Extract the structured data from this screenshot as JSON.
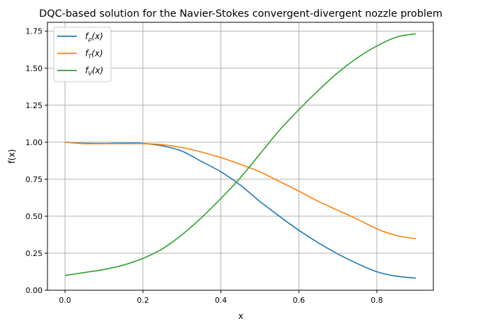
{
  "chart_data": {
    "type": "line",
    "title": "DQC-based solution for the Navier-Stokes convergent-divergent nozzle problem",
    "xlabel": "x",
    "ylabel": "f(x)",
    "xlim": [
      -0.045,
      0.945
    ],
    "ylim": [
      0,
      1.81
    ],
    "xticks": [
      0.0,
      0.2,
      0.4,
      0.6,
      0.8
    ],
    "xtick_labels": [
      "0.0",
      "0.2",
      "0.4",
      "0.6",
      "0.8"
    ],
    "yticks": [
      0,
      0.25,
      0.5,
      0.75,
      1.0,
      1.25,
      1.5,
      1.75
    ],
    "ytick_labels": [
      "0.00",
      "0.25",
      "0.50",
      "0.75",
      "1.00",
      "1.25",
      "1.50",
      "1.75"
    ],
    "grid": true,
    "legend_position": "top-left",
    "x": [
      0,
      0.05,
      0.1,
      0.15,
      0.2,
      0.25,
      0.3,
      0.35,
      0.4,
      0.45,
      0.5,
      0.55,
      0.6,
      0.65,
      0.7,
      0.75,
      0.8,
      0.85,
      0.9
    ],
    "series": [
      {
        "name": "f_ρ(x)",
        "label_main": "f",
        "label_sub": "ρ",
        "label_tail": "(x)",
        "color": "#1f77b4",
        "values": [
          1.0,
          0.993,
          0.992,
          0.994,
          0.992,
          0.975,
          0.94,
          0.87,
          0.8,
          0.71,
          0.6,
          0.5,
          0.405,
          0.32,
          0.245,
          0.18,
          0.125,
          0.095,
          0.082
        ]
      },
      {
        "name": "f_T(x)",
        "label_main": "f",
        "label_sub": "T",
        "label_tail": "(x)",
        "color": "#ff7f0e",
        "values": [
          1.0,
          0.99,
          0.99,
          0.99,
          0.99,
          0.983,
          0.964,
          0.934,
          0.896,
          0.85,
          0.8,
          0.735,
          0.67,
          0.6,
          0.54,
          0.48,
          0.415,
          0.37,
          0.348
        ]
      },
      {
        "name": "f_V(x)",
        "label_main": "f",
        "label_sub": "V",
        "label_tail": "(x)",
        "color": "#2ca02c",
        "values": [
          0.1,
          0.12,
          0.14,
          0.17,
          0.215,
          0.28,
          0.375,
          0.49,
          0.62,
          0.76,
          0.92,
          1.08,
          1.22,
          1.35,
          1.47,
          1.57,
          1.65,
          1.71,
          1.733
        ]
      }
    ]
  }
}
